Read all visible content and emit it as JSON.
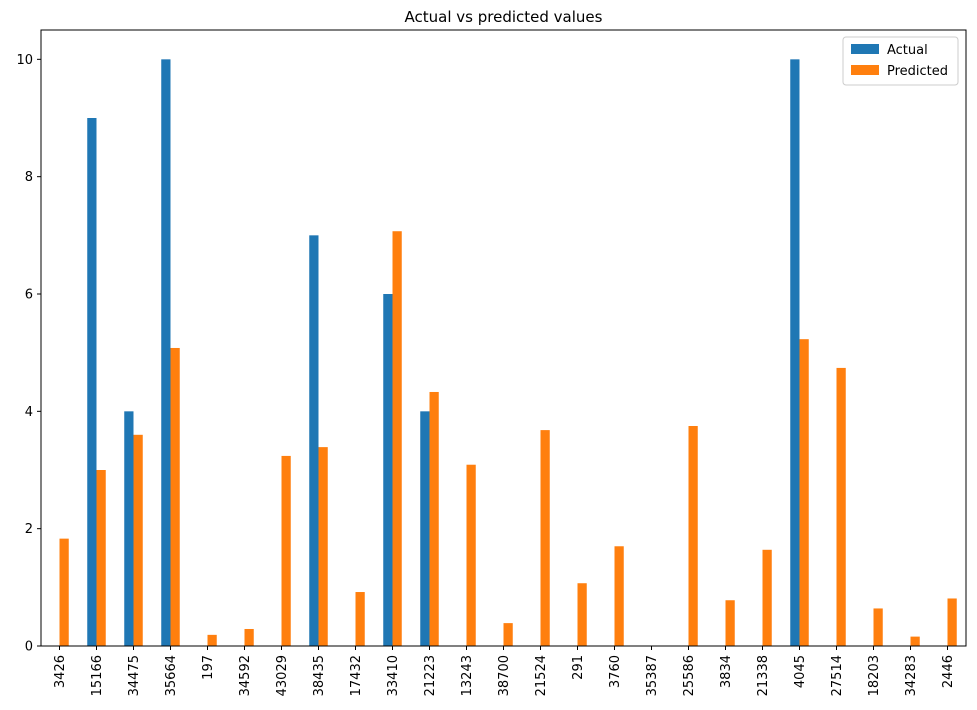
{
  "chart_data": {
    "type": "bar",
    "title": "Actual vs predicted values",
    "xlabel": "",
    "ylabel": "",
    "ylim": [
      0,
      10.5
    ],
    "yticks": [
      0,
      2,
      4,
      6,
      8,
      10
    ],
    "grid": false,
    "legend_position": "top-right",
    "categories": [
      "3426",
      "15166",
      "34475",
      "35664",
      "197",
      "34592",
      "43029",
      "38435",
      "17432",
      "33410",
      "21223",
      "13243",
      "38700",
      "21524",
      "291",
      "3760",
      "35387",
      "25586",
      "3834",
      "21338",
      "4045",
      "27514",
      "18203",
      "34283",
      "2446"
    ],
    "series": [
      {
        "name": "Actual",
        "color": "#1f77b4",
        "values": [
          0,
          9,
          4,
          10,
          0,
          0,
          0,
          7,
          0,
          6,
          4,
          0,
          0,
          0,
          0,
          0,
          0,
          0,
          0,
          0,
          10,
          0,
          0,
          0,
          0
        ]
      },
      {
        "name": "Predicted",
        "color": "#ff7f0e",
        "values": [
          1.83,
          3.0,
          3.6,
          5.08,
          0.19,
          0.29,
          3.24,
          3.39,
          0.92,
          7.07,
          4.33,
          3.09,
          0.39,
          3.68,
          1.07,
          1.7,
          0,
          3.75,
          0.78,
          1.64,
          5.23,
          4.74,
          0.64,
          0.16,
          0.81
        ]
      }
    ]
  }
}
